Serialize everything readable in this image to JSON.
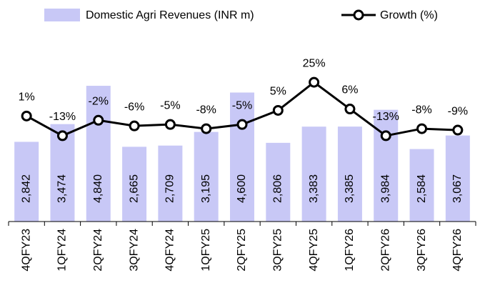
{
  "chart_data": {
    "type": "bar",
    "categories": [
      "4QFY23",
      "1QFY24",
      "2QFY24",
      "3QFY24",
      "4QFY24",
      "1QFY25",
      "2QFY25",
      "3QFY25",
      "4QFY25",
      "1QFY26",
      "2QFY26",
      "3QFY26",
      "4QFY26"
    ],
    "series": [
      {
        "name": "Domestic Agri Revenues (INR m)",
        "type": "bar",
        "color": "#c8c8f6",
        "values": [
          2842,
          3474,
          4840,
          2665,
          2709,
          3195,
          4600,
          2806,
          3383,
          3385,
          3984,
          2584,
          3067
        ],
        "value_labels": [
          "2,842",
          "3,474",
          "4,840",
          "2,665",
          "2,709",
          "3,195",
          "4,600",
          "2,806",
          "3,383",
          "3,385",
          "3,984",
          "2,584",
          "3,067"
        ]
      },
      {
        "name": "Growth (%)",
        "type": "line",
        "axis": "y2",
        "color": "#000000",
        "values": [
          1,
          -13,
          -2,
          -6,
          -5,
          -8,
          -5,
          5,
          25,
          6,
          -13,
          -8,
          -9
        ],
        "value_labels": [
          "1%",
          "-13%",
          "-2%",
          "-6%",
          "-5%",
          "-8%",
          "-5%",
          "5%",
          "25%",
          "6%",
          "-13%",
          "-8%",
          "-9%"
        ]
      }
    ],
    "ylim": [
      0,
      6370
    ],
    "y2lim": [
      -74,
      53
    ],
    "legend": "top"
  }
}
